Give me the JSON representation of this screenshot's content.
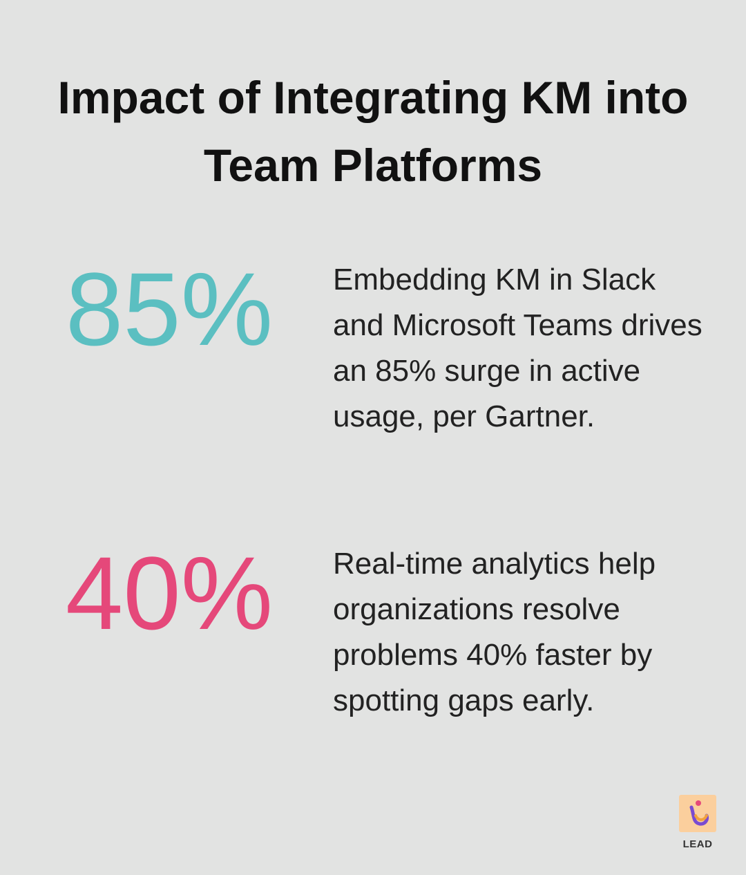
{
  "title": "Impact of Integrating KM into Team Platforms",
  "stats": [
    {
      "value": "85%",
      "color": "#5bbfc1",
      "description": "Embedding KM in Slack and Microsoft Teams drives an 85% surge in active usage, per Gartner."
    },
    {
      "value": "40%",
      "color": "#e5487a",
      "description": "Real-time analytics help organizations resolve problems 40% faster by spotting gaps early."
    }
  ],
  "logo": {
    "label": "LEAD"
  }
}
